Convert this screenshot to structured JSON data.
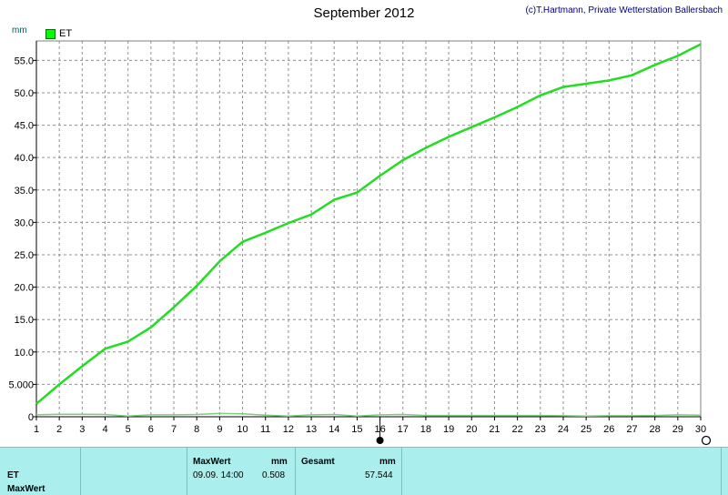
{
  "title": "September 2012",
  "copyright": "(c)T.Hartmann, Private Wetterstation Ballersbach",
  "unit": "mm",
  "legend": {
    "label": "ET",
    "color": "#00ff00"
  },
  "chart_data": {
    "type": "line",
    "title": "September 2012",
    "ylabel": "mm",
    "xlabel": "",
    "xlim": [
      1,
      30
    ],
    "ylim": [
      0,
      58
    ],
    "grid": true,
    "legend_position": "top-left",
    "x_ticks": [
      1,
      2,
      3,
      4,
      5,
      6,
      7,
      8,
      9,
      10,
      11,
      12,
      13,
      14,
      15,
      16,
      17,
      18,
      19,
      20,
      21,
      22,
      23,
      24,
      25,
      26,
      27,
      28,
      29,
      30
    ],
    "y_ticks": [
      0,
      5,
      10,
      15,
      20,
      25,
      30,
      35,
      40,
      45,
      50,
      55
    ],
    "y_tick_labels": [
      "0",
      "5.000",
      "10.0",
      "15.0",
      "20.0",
      "25.0",
      "30.0",
      "35.0",
      "40.0",
      "45.0",
      "50.0",
      "55.0"
    ],
    "series": [
      {
        "name": "ET",
        "color": "#22dd22",
        "x": [
          1,
          2,
          3,
          4,
          5,
          6,
          7,
          8,
          9,
          10,
          11,
          12,
          13,
          14,
          15,
          16,
          17,
          18,
          19,
          20,
          21,
          22,
          23,
          24,
          25,
          26,
          27,
          28,
          29,
          30
        ],
        "y": [
          2.0,
          5.0,
          7.8,
          10.5,
          11.6,
          13.8,
          16.9,
          20.2,
          24.0,
          27.0,
          28.4,
          29.9,
          31.2,
          33.5,
          34.6,
          37.2,
          39.6,
          41.5,
          43.2,
          44.7,
          46.2,
          47.8,
          49.6,
          50.9,
          51.4,
          51.9,
          52.7,
          54.3,
          55.7,
          57.5
        ]
      },
      {
        "name": "",
        "color": "#7fcc7f",
        "x": [
          1,
          2,
          3,
          4,
          5,
          6,
          7,
          8,
          9,
          10,
          11,
          12,
          13,
          14,
          15,
          16,
          17,
          18,
          19,
          20,
          21,
          22,
          23,
          24,
          25,
          26,
          27,
          28,
          29,
          30
        ],
        "y": [
          0.3,
          0.4,
          0.4,
          0.35,
          0.1,
          0.3,
          0.3,
          0.35,
          0.5,
          0.45,
          0.25,
          0.1,
          0.3,
          0.35,
          0.1,
          0.3,
          0.35,
          0.2,
          0.2,
          0.2,
          0.2,
          0.2,
          0.2,
          0.15,
          0.1,
          0.15,
          0.15,
          0.2,
          0.3,
          0.25
        ]
      }
    ]
  },
  "table": {
    "row_labels": [
      "ET",
      "MaxWert"
    ],
    "max_header": "MaxWert",
    "max_unit": "mm",
    "max_time": "09.09.  14:00",
    "max_value": "0.508",
    "sum_header": "Gesamt",
    "sum_unit": "mm",
    "sum_value": "57.544"
  }
}
